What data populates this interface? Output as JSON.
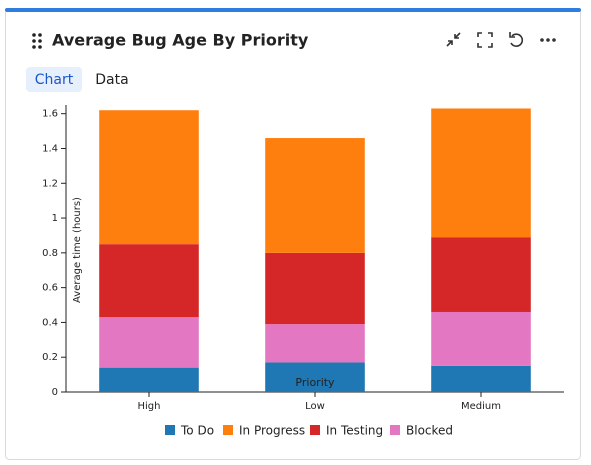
{
  "tabs": [
    "Chart",
    "Data"
  ],
  "chart_data": {
    "type": "stacked_bar",
    "title": "Average Bug Age By Priority",
    "y_label": "Average time (hours)",
    "x_label": "Priority",
    "categories": [
      "High",
      "Low",
      "Medium"
    ],
    "series": [
      {
        "name": "To Do",
        "color": "#1f77b4",
        "values": [
          0.14,
          0.17,
          0.15
        ]
      },
      {
        "name": "In Progress",
        "color": "#ff7f0e",
        "values": [
          0.77,
          0.66,
          0.74
        ]
      },
      {
        "name": "In Testing",
        "color": "#d62728",
        "values": [
          0.42,
          0.41,
          0.43
        ]
      },
      {
        "name": "Blocked",
        "color": "#e377c2",
        "values": [
          0.29,
          0.22,
          0.31
        ]
      }
    ],
    "ylim": [
      0,
      1.65
    ],
    "yticks": [
      0,
      0.2,
      0.4,
      0.6,
      0.8,
      1,
      1.2,
      1.4,
      1.6
    ]
  }
}
